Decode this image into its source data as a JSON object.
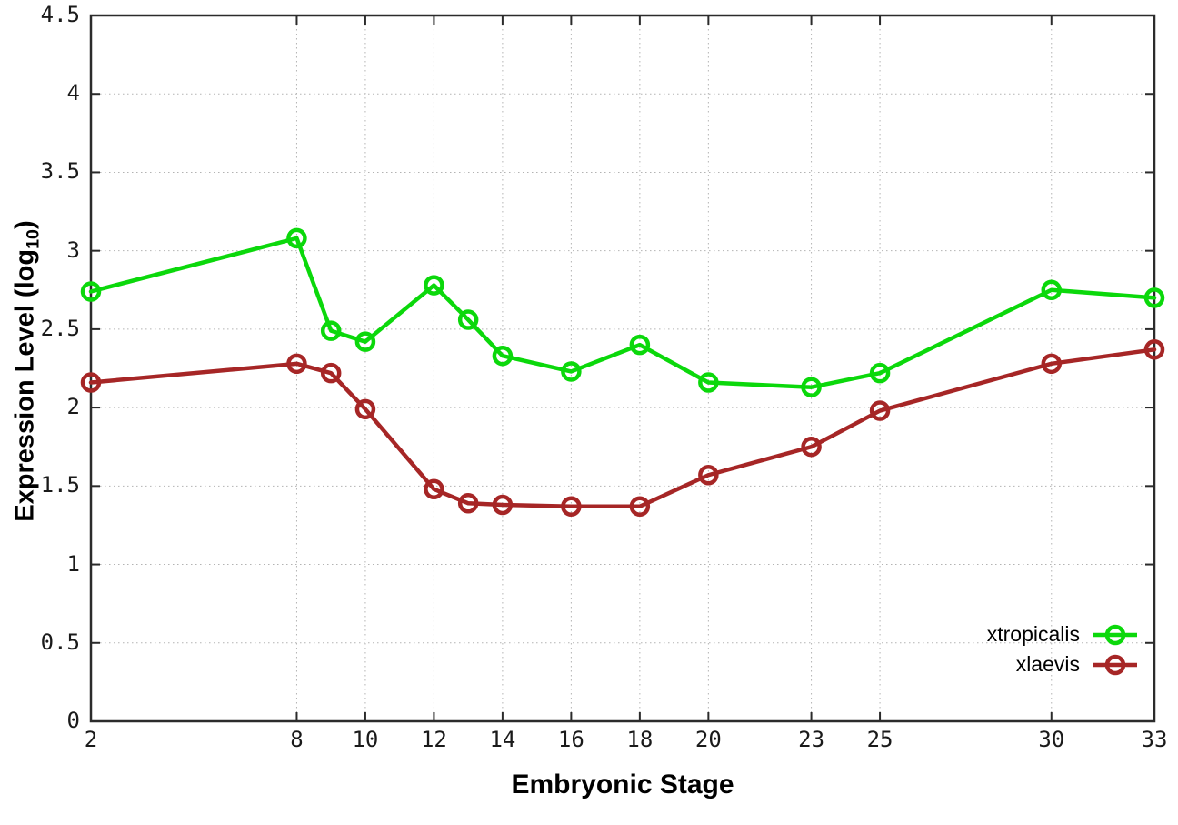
{
  "chart_data": {
    "type": "line",
    "title": "",
    "xlabel": "Embryonic Stage",
    "ylabel_parts": {
      "main": "Expression Level (log",
      "sub": "10",
      "suffix": ")"
    },
    "xlim": [
      2,
      33
    ],
    "ylim": [
      0,
      4.5
    ],
    "grid": true,
    "grid_style": "dotted",
    "legend_position": "bottom-right",
    "axis_color": "#2b2b2b",
    "grid_color": "#b3b3b3",
    "x_ticks": [
      2,
      8,
      10,
      12,
      14,
      16,
      18,
      20,
      23,
      25,
      30,
      33
    ],
    "x_tick_labels": [
      "2",
      "8",
      "10",
      "12",
      "14",
      "16",
      "18",
      "20",
      "23",
      "25",
      "30",
      "33"
    ],
    "y_ticks": [
      0,
      0.5,
      1,
      1.5,
      2,
      2.5,
      3,
      3.5,
      4,
      4.5
    ],
    "y_tick_labels": [
      "0",
      "0.5",
      "1",
      "1.5",
      "2",
      "2.5",
      "3",
      "3.5",
      "4",
      "4.5"
    ],
    "x": [
      2,
      8,
      9,
      10,
      12,
      13,
      14,
      16,
      18,
      20,
      23,
      25,
      30,
      33
    ],
    "series": [
      {
        "name": "xtropicalis",
        "color": "#0bd80b",
        "marker": "open-circle",
        "values": [
          2.74,
          3.08,
          2.49,
          2.42,
          2.78,
          2.56,
          2.33,
          2.23,
          2.4,
          2.16,
          2.13,
          2.22,
          2.75,
          2.7
        ]
      },
      {
        "name": "xlaevis",
        "color": "#a62626",
        "marker": "open-circle",
        "values": [
          2.16,
          2.28,
          2.22,
          1.99,
          1.48,
          1.39,
          1.38,
          1.37,
          1.37,
          1.57,
          1.75,
          1.98,
          2.28,
          2.37
        ]
      }
    ]
  }
}
